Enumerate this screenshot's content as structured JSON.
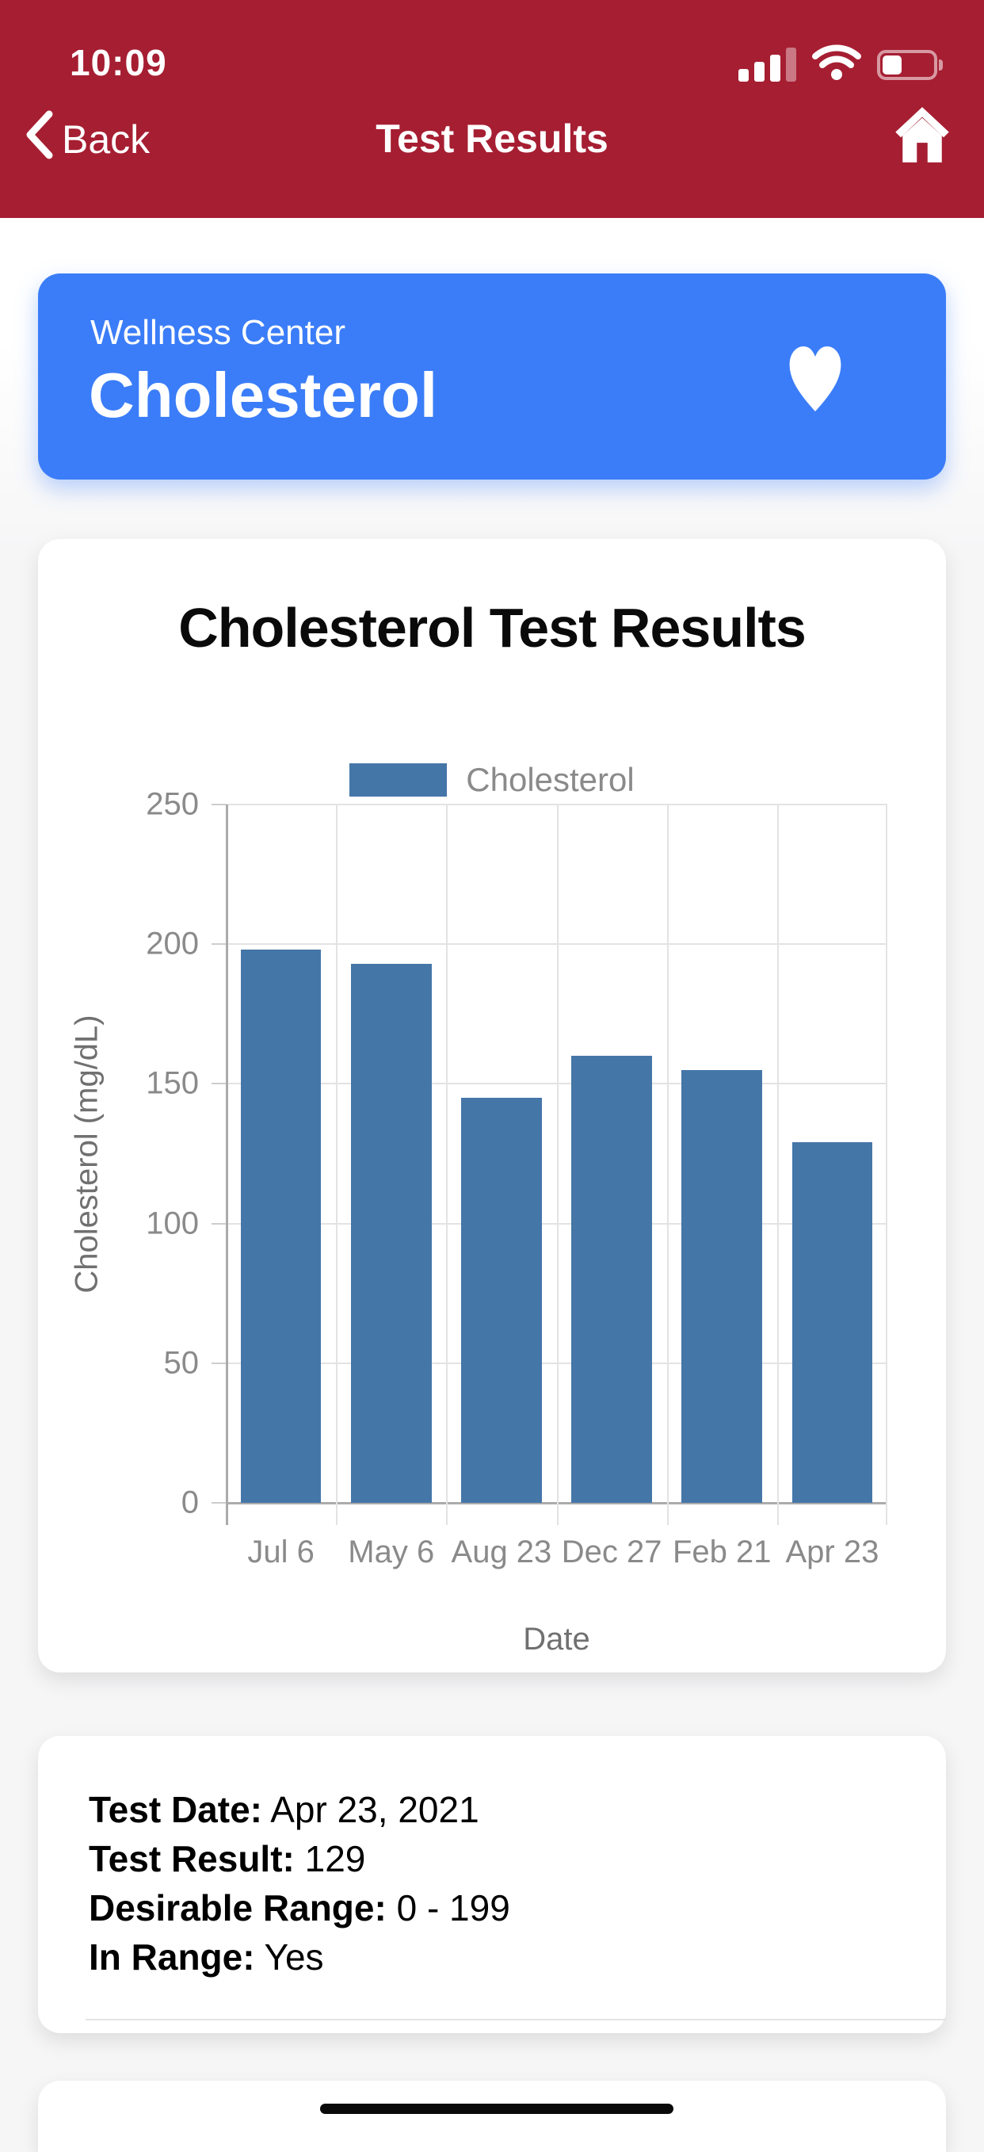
{
  "status_bar": {
    "time": "10:09"
  },
  "nav": {
    "back_label": "Back",
    "title": "Test Results"
  },
  "wellness_card": {
    "subtitle": "Wellness Center",
    "title": "Cholesterol"
  },
  "chart_card": {
    "title": "Cholesterol Test Results"
  },
  "chart_data": {
    "type": "bar",
    "title": "Cholesterol Test Results",
    "categories": [
      "Jul 6",
      "May 6",
      "Aug 23",
      "Dec 27",
      "Feb 21",
      "Apr 23"
    ],
    "values": [
      198,
      193,
      145,
      160,
      155,
      129
    ],
    "series_name": "Cholesterol",
    "xlabel": "Date",
    "ylabel": "Cholesterol (mg/dL)",
    "ylim": [
      0,
      250
    ],
    "yticks": [
      0,
      50,
      100,
      150,
      200,
      250
    ],
    "legend_position": "top",
    "grid": true,
    "bar_color": "#4576A8"
  },
  "details_card": {
    "rows": [
      {
        "label": "Test Date:",
        "value": " Apr 23, 2021"
      },
      {
        "label": "Test Result:",
        "value": " 129"
      },
      {
        "label": "Desirable Range:",
        "value": " 0 - 199"
      },
      {
        "label": "In Range:",
        "value": " Yes"
      }
    ]
  },
  "colors": {
    "header_red": "#A61E32",
    "card_blue": "#3B7DF8",
    "bar_blue": "#4576A8"
  }
}
